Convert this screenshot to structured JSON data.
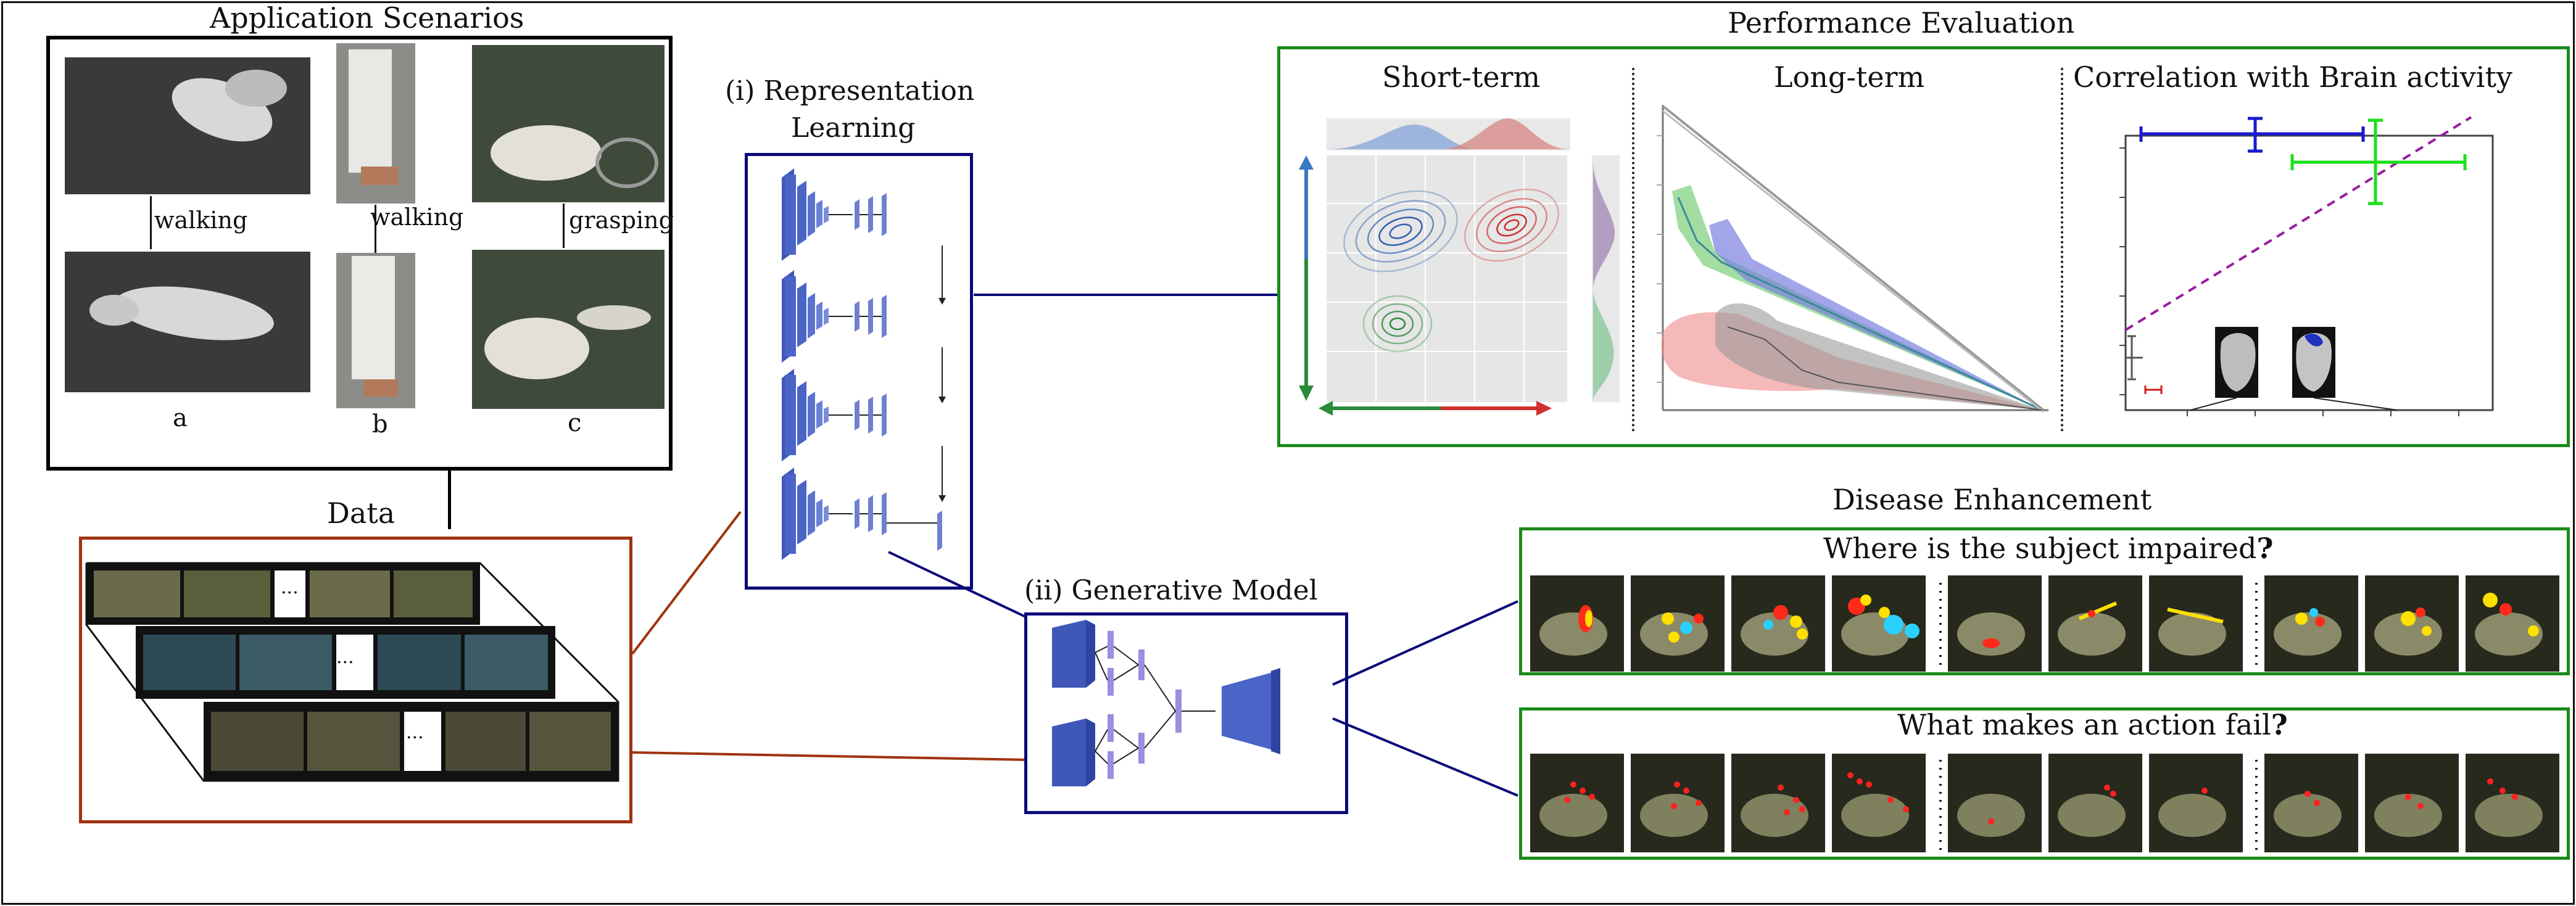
{
  "scenarios": {
    "title": "Application Scenarios",
    "labels": [
      "walking",
      "walking",
      "grasping"
    ],
    "letters": [
      "a",
      "b",
      "c"
    ]
  },
  "data_panel": {
    "title": "Data",
    "ellipsis": "..."
  },
  "representation": {
    "title_line1": "(i) Representation",
    "title_line2": "Learning"
  },
  "generative": {
    "title": "(ii) Generative Model"
  },
  "performance": {
    "title": "Performance Evaluation",
    "short_term": "Short-term",
    "long_term": "Long-term",
    "correlation": "Correlation with Brain activity"
  },
  "disease": {
    "title": "Disease Enhancement",
    "q1": "Where is the subject impaired",
    "q2": "What makes an action fail",
    "qmark": "?"
  },
  "colors": {
    "frame_black": "#111111",
    "scenario_border": "#000000",
    "data_border": "#a0330f",
    "navy": "#0a0a7a",
    "green": "#1a8a1a",
    "block_blue": "#4a64c8",
    "block_lavender": "#9a8ee0"
  }
}
